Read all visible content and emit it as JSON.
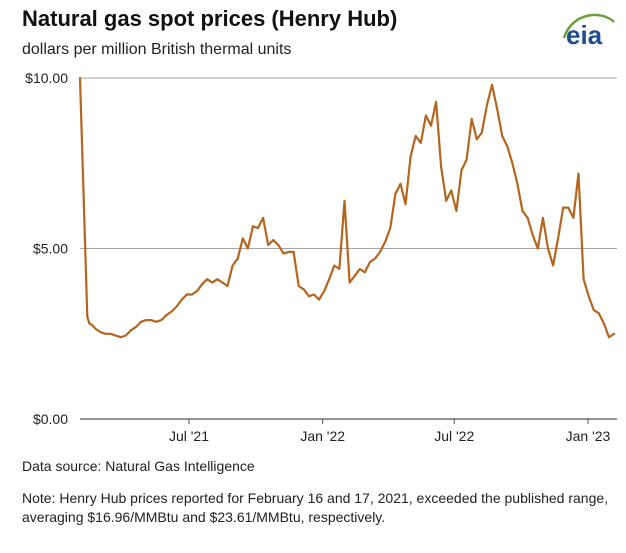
{
  "header": {
    "title": "Natural gas spot prices (Henry Hub)",
    "subtitle": "dollars per million British thermal units",
    "logo_text": "eia"
  },
  "footer": {
    "source": "Data source: Natural Gas Intelligence",
    "note": "Note: Henry Hub prices reported for February 16 and 17, 2021, exceeded the published range, averaging $16.96/MMBtu and $23.61/MMBtu, respectively."
  },
  "colors": {
    "line": "#b5651d",
    "grid": "#a6a6a6",
    "logo": "#1c4f8a",
    "logo_accent": "#69a13d"
  },
  "chart_data": {
    "type": "line",
    "title": "Natural gas spot prices (Henry Hub)",
    "ylabel": "dollars per million British thermal units",
    "ylim": [
      0,
      10
    ],
    "yticks": [
      0,
      5,
      10
    ],
    "ytick_labels": [
      "$0.00",
      "$5.00",
      "$10.00"
    ],
    "xlim": [
      "2021-02-01",
      "2023-02-10"
    ],
    "xticks": [
      "2021-07-01",
      "2022-01-01",
      "2022-07-01",
      "2023-01-01"
    ],
    "xtick_labels": [
      "Jul '21",
      "Jan '22",
      "Jul '22",
      "Jan '23"
    ],
    "grid": "horizontal",
    "series": [
      {
        "x": [
          "2021-02-01",
          "2021-02-11",
          "2021-02-14",
          "2021-02-18",
          "2021-02-22",
          "2021-03-01",
          "2021-03-08",
          "2021-03-15",
          "2021-03-22",
          "2021-03-29",
          "2021-04-05",
          "2021-04-12",
          "2021-04-19",
          "2021-04-26",
          "2021-05-03",
          "2021-05-10",
          "2021-05-17",
          "2021-05-24",
          "2021-05-31",
          "2021-06-07",
          "2021-06-14",
          "2021-06-21",
          "2021-06-28",
          "2021-07-05",
          "2021-07-12",
          "2021-07-19",
          "2021-07-26",
          "2021-08-02",
          "2021-08-09",
          "2021-08-16",
          "2021-08-23",
          "2021-08-30",
          "2021-09-06",
          "2021-09-13",
          "2021-09-20",
          "2021-09-27",
          "2021-10-04",
          "2021-10-11",
          "2021-10-18",
          "2021-10-25",
          "2021-11-01",
          "2021-11-08",
          "2021-11-15",
          "2021-11-22",
          "2021-11-29",
          "2021-12-06",
          "2021-12-13",
          "2021-12-20",
          "2021-12-27",
          "2022-01-03",
          "2022-01-10",
          "2022-01-17",
          "2022-01-24",
          "2022-01-31",
          "2022-02-07",
          "2022-02-14",
          "2022-02-21",
          "2022-02-28",
          "2022-03-07",
          "2022-03-14",
          "2022-03-21",
          "2022-03-28",
          "2022-04-04",
          "2022-04-11",
          "2022-04-18",
          "2022-04-25",
          "2022-05-02",
          "2022-05-09",
          "2022-05-16",
          "2022-05-23",
          "2022-05-30",
          "2022-06-06",
          "2022-06-13",
          "2022-06-20",
          "2022-06-27",
          "2022-07-04",
          "2022-07-11",
          "2022-07-18",
          "2022-07-25",
          "2022-08-01",
          "2022-08-08",
          "2022-08-15",
          "2022-08-22",
          "2022-08-29",
          "2022-09-05",
          "2022-09-12",
          "2022-09-19",
          "2022-09-26",
          "2022-10-03",
          "2022-10-10",
          "2022-10-17",
          "2022-10-24",
          "2022-10-31",
          "2022-11-07",
          "2022-11-14",
          "2022-11-21",
          "2022-11-28",
          "2022-12-05",
          "2022-12-12",
          "2022-12-19",
          "2022-12-26",
          "2023-01-02",
          "2023-01-09",
          "2023-01-16",
          "2023-01-23",
          "2023-01-30",
          "2023-02-06"
        ],
        "values": [
          10.0,
          3.0,
          2.8,
          2.75,
          2.65,
          2.55,
          2.5,
          2.5,
          2.45,
          2.4,
          2.45,
          2.6,
          2.7,
          2.85,
          2.9,
          2.9,
          2.85,
          2.9,
          3.05,
          3.15,
          3.3,
          3.5,
          3.65,
          3.65,
          3.75,
          3.95,
          4.1,
          4.0,
          4.1,
          4.0,
          3.9,
          4.5,
          4.7,
          5.3,
          5.0,
          5.65,
          5.6,
          5.9,
          5.1,
          5.25,
          5.1,
          4.85,
          4.9,
          4.9,
          3.9,
          3.8,
          3.6,
          3.65,
          3.5,
          3.75,
          4.1,
          4.5,
          4.4,
          6.4,
          4.0,
          4.2,
          4.4,
          4.3,
          4.6,
          4.7,
          4.9,
          5.2,
          5.6,
          6.6,
          6.9,
          6.3,
          7.7,
          8.3,
          8.1,
          8.9,
          8.6,
          9.3,
          7.4,
          6.4,
          6.7,
          6.1,
          7.3,
          7.6,
          8.8,
          8.2,
          8.4,
          9.2,
          9.8,
          9.1,
          8.3,
          8.0,
          7.5,
          6.9,
          6.1,
          5.9,
          5.4,
          5.0,
          5.9,
          5.0,
          4.5,
          5.3,
          6.2,
          6.2,
          5.9,
          7.2,
          4.1,
          3.6,
          3.2,
          3.1,
          2.8,
          2.4,
          2.5
        ]
      }
    ]
  }
}
